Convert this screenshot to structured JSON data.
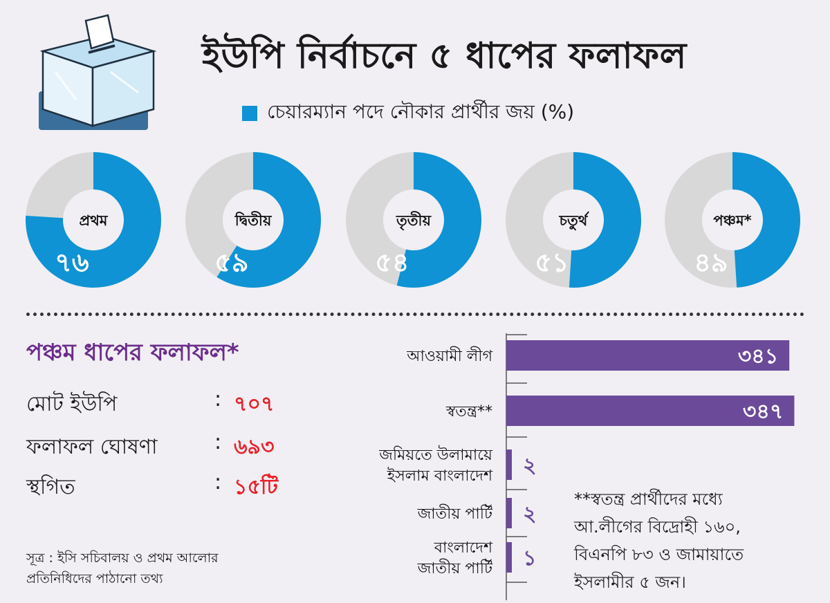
{
  "header": {
    "title": "ইউপি নির্বাচনে ৫ ধাপের ফলাফল"
  },
  "colors": {
    "win": "#0f93d4",
    "rest": "#d8d8d8",
    "bar": "#6b4a9a",
    "red": "#e8222a",
    "heading": "#6b2d8a",
    "box_face": "#e6f3fb",
    "box_top": "#bfe0f3",
    "box_stand": "#3b6f9b"
  },
  "chart_data": [
    {
      "type": "pie",
      "title": "",
      "legend": "চেয়ারম্যান পদে নৌকার প্রার্থীর জয় (%)",
      "legend_position": "top",
      "categories": [
        "প্রথম",
        "দ্বিতীয়",
        "তৃতীয়",
        "চতুর্থ",
        "পঞ্চম*"
      ],
      "values": [
        76,
        59,
        54,
        51,
        49
      ],
      "value_labels": [
        "৭৬",
        "৫৯",
        "৫৪",
        "৫১",
        "৪৯"
      ]
    },
    {
      "type": "bar",
      "orientation": "horizontal",
      "title": "",
      "xlabel": "",
      "ylabel": "",
      "grid": false,
      "categories": [
        [
          "আওয়ামী লীগ"
        ],
        [
          "স্বতন্ত্র**"
        ],
        [
          "জমিয়তে উলামায়ে",
          "ইসলাম বাংলাদেশ"
        ],
        [
          "জাতীয় পার্টি"
        ],
        [
          "বাংলাদেশ",
          "জাতীয় পার্টি"
        ]
      ],
      "values": [
        341,
        347,
        2,
        2,
        1
      ],
      "value_labels": [
        "৩৪১",
        "৩৪৭",
        "২",
        "২",
        "১"
      ],
      "xlim": [
        0,
        360
      ]
    }
  ],
  "summary": {
    "heading": "পঞ্চম ধাপের ফলাফল*",
    "colon": ":",
    "rows": [
      {
        "label": "মোট ইউপি",
        "value": "৭০৭"
      },
      {
        "label": "ফলাফল ঘোষণা",
        "value": "৬৯৩"
      },
      {
        "label": "স্থগিত",
        "value": "১৫টি"
      }
    ]
  },
  "source": {
    "line1": "সূত্র : ইসি সচিবালয় ও প্রথম আলোর",
    "line2": "প্রতিনিধিদের পাঠানো তথ্য"
  },
  "note": {
    "lines": [
      "**স্বতন্ত্র প্রার্থীদের মধ্যে",
      "আ.লীগের বিদ্রোহী ১৬০,",
      "বিএনপি ৮৩ ও জামায়াতে",
      "ইসলামীর ৫ জন।"
    ]
  }
}
